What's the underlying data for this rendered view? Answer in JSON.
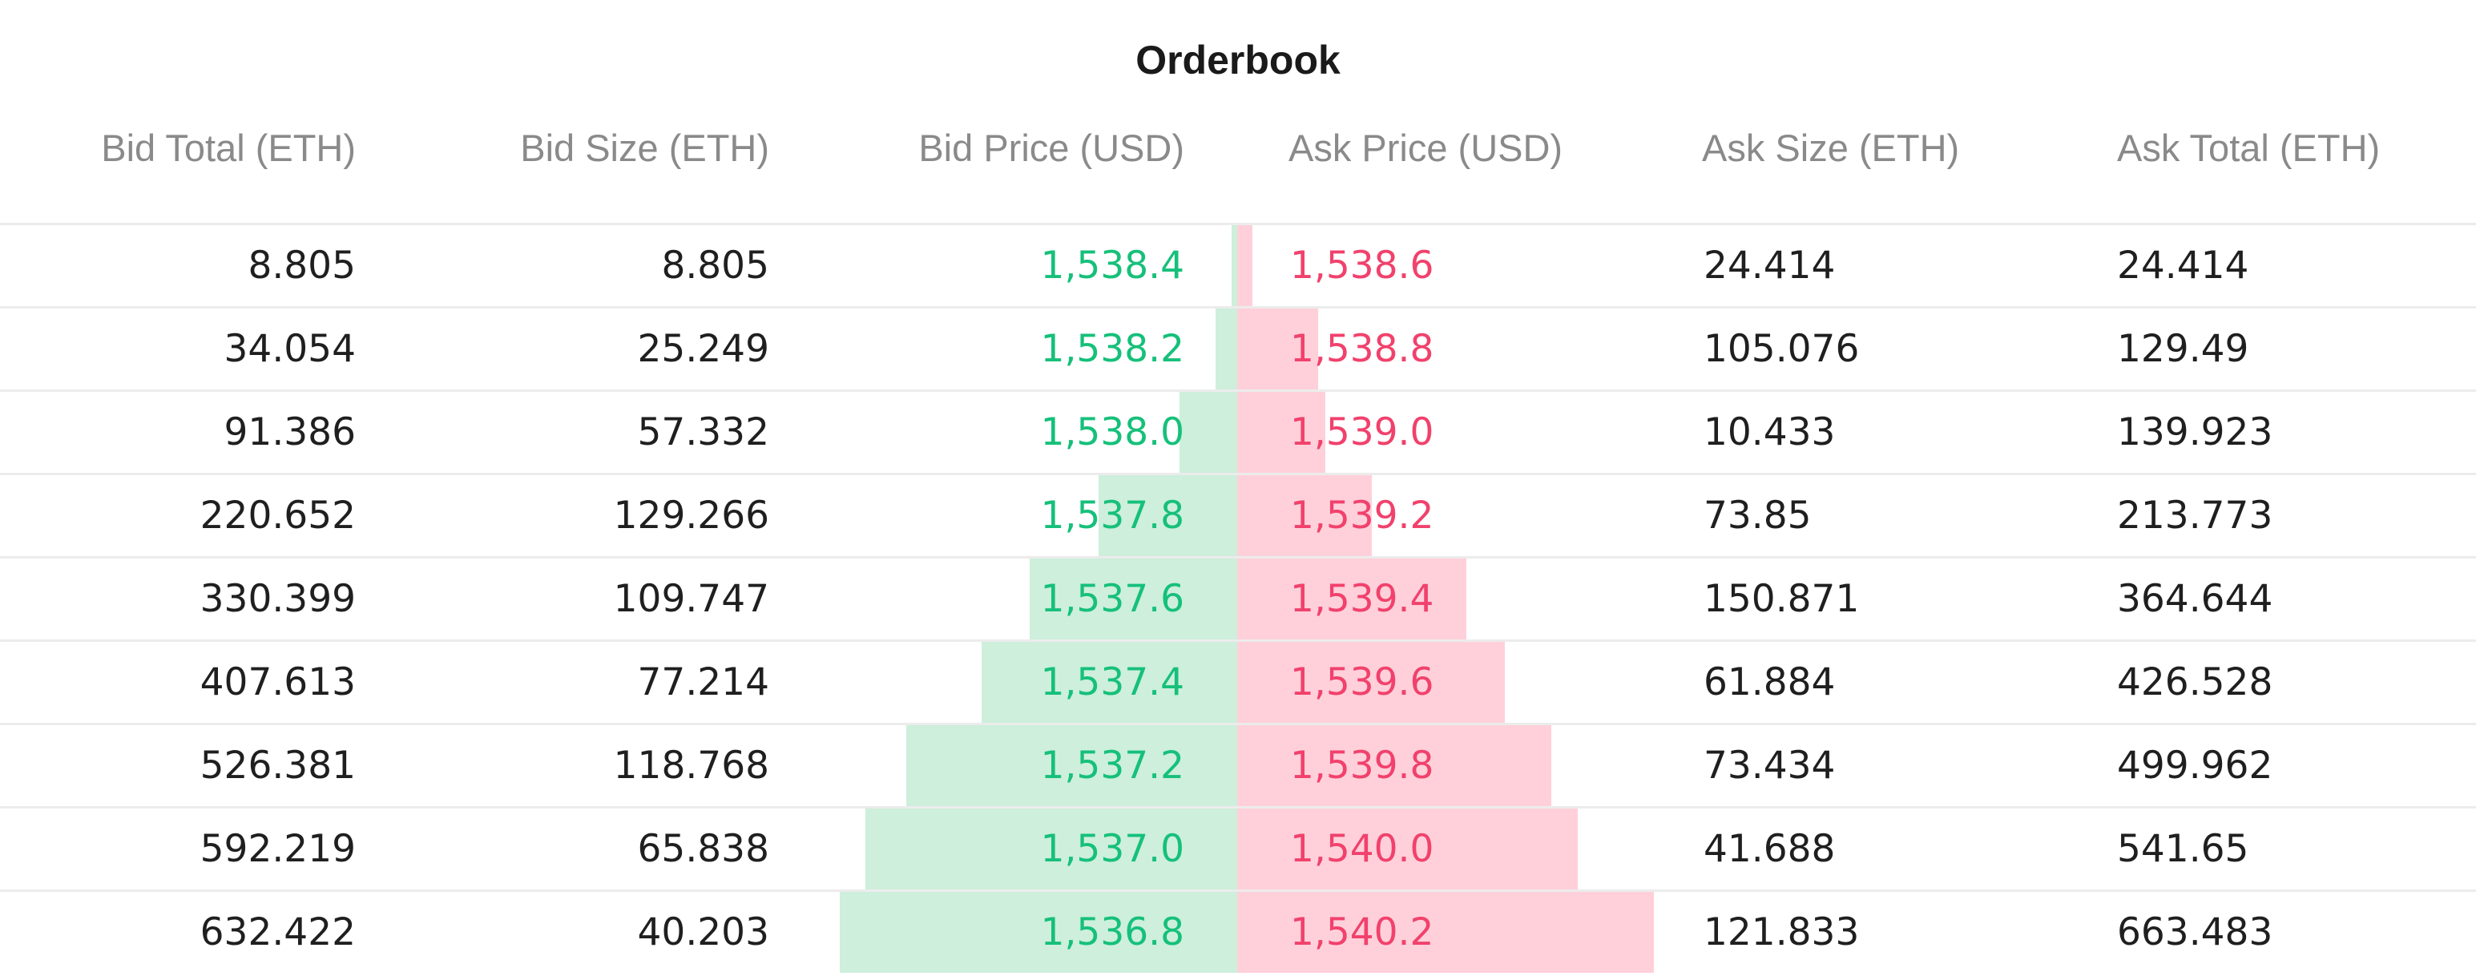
{
  "title": "Orderbook",
  "columns": {
    "bid_total": "Bid Total (ETH)",
    "bid_size": "Bid Size (ETH)",
    "bid_price": "Bid Price (USD)",
    "ask_price": "Ask Price (USD)",
    "ask_size": "Ask Size (ETH)",
    "ask_total": "Ask Total (ETH)"
  },
  "colors": {
    "bid_text": "#16c07a",
    "ask_text": "#f1416c",
    "bid_depth": "#cdefdc",
    "ask_depth": "#ffd0da",
    "header_text": "#8a8a8a"
  },
  "max_total": 663.483,
  "rows": [
    {
      "bid_total": "8.805",
      "bid_size": "8.805",
      "bid_price": "1,538.4",
      "ask_price": "1,538.6",
      "ask_size": "24.414",
      "ask_total": "24.414",
      "bid_total_num": 8.805,
      "ask_total_num": 24.414
    },
    {
      "bid_total": "34.054",
      "bid_size": "25.249",
      "bid_price": "1,538.2",
      "ask_price": "1,538.8",
      "ask_size": "105.076",
      "ask_total": "129.49",
      "bid_total_num": 34.054,
      "ask_total_num": 129.49
    },
    {
      "bid_total": "91.386",
      "bid_size": "57.332",
      "bid_price": "1,538.0",
      "ask_price": "1,539.0",
      "ask_size": "10.433",
      "ask_total": "139.923",
      "bid_total_num": 91.386,
      "ask_total_num": 139.923
    },
    {
      "bid_total": "220.652",
      "bid_size": "129.266",
      "bid_price": "1,537.8",
      "ask_price": "1,539.2",
      "ask_size": "73.85",
      "ask_total": "213.773",
      "bid_total_num": 220.652,
      "ask_total_num": 213.773
    },
    {
      "bid_total": "330.399",
      "bid_size": "109.747",
      "bid_price": "1,537.6",
      "ask_price": "1,539.4",
      "ask_size": "150.871",
      "ask_total": "364.644",
      "bid_total_num": 330.399,
      "ask_total_num": 364.644
    },
    {
      "bid_total": "407.613",
      "bid_size": "77.214",
      "bid_price": "1,537.4",
      "ask_price": "1,539.6",
      "ask_size": "61.884",
      "ask_total": "426.528",
      "bid_total_num": 407.613,
      "ask_total_num": 426.528
    },
    {
      "bid_total": "526.381",
      "bid_size": "118.768",
      "bid_price": "1,537.2",
      "ask_price": "1,539.8",
      "ask_size": "73.434",
      "ask_total": "499.962",
      "bid_total_num": 526.381,
      "ask_total_num": 499.962
    },
    {
      "bid_total": "592.219",
      "bid_size": "65.838",
      "bid_price": "1,537.0",
      "ask_price": "1,540.0",
      "ask_size": "41.688",
      "ask_total": "541.65",
      "bid_total_num": 592.219,
      "ask_total_num": 541.65
    },
    {
      "bid_total": "632.422",
      "bid_size": "40.203",
      "bid_price": "1,536.8",
      "ask_price": "1,540.2",
      "ask_size": "121.833",
      "ask_total": "663.483",
      "bid_total_num": 632.422,
      "ask_total_num": 663.483
    }
  ]
}
